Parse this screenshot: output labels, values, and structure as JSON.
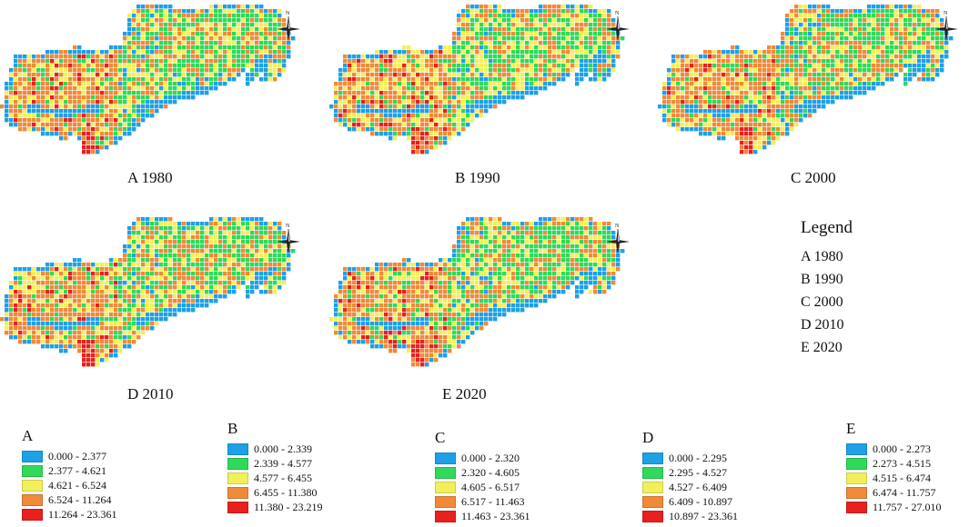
{
  "colors": {
    "class1": "#1ea0e6",
    "class2": "#2fd95a",
    "class3": "#f3ef5b",
    "class4": "#ef8a3a",
    "class5": "#e8201e"
  },
  "panels": [
    {
      "id": "A",
      "label": "A 1980"
    },
    {
      "id": "B",
      "label": "B 1990"
    },
    {
      "id": "C",
      "label": "C 2000"
    },
    {
      "id": "D",
      "label": "D 2010"
    },
    {
      "id": "E",
      "label": "E 2020"
    }
  ],
  "north_label": "N",
  "legend": {
    "title": "Legend",
    "items": [
      "A 1980",
      "B 1990",
      "C 2000",
      "D 2010",
      "E 2020"
    ]
  },
  "keys": [
    {
      "letter": "A",
      "classes": [
        "0.000 - 2.377",
        "2.377 - 4.621",
        "4.621 - 6.524",
        "6.524 - 11.264",
        "11.264 - 23.361"
      ]
    },
    {
      "letter": "B",
      "classes": [
        "0.000 - 2.339",
        "2.339 - 4.577",
        "4.577 - 6.455",
        "6.455 - 11.380",
        "11.380 - 23.219"
      ]
    },
    {
      "letter": "C",
      "classes": [
        "0.000 - 2.320",
        "2.320 - 4.605",
        "4.605 - 6.517",
        "6.517 - 11.463",
        "11.463 - 23.361"
      ]
    },
    {
      "letter": "D",
      "classes": [
        "0.000 - 2.295",
        "2.295 - 4.527",
        "4.527 - 6.409",
        "6.409 - 10.897",
        "10.897 - 23.361"
      ]
    },
    {
      "letter": "E",
      "classes": [
        "0.000 - 2.273",
        "2.273 - 4.515",
        "4.515 - 6.474",
        "6.474 - 11.757",
        "11.757 - 27.010"
      ]
    }
  ]
}
